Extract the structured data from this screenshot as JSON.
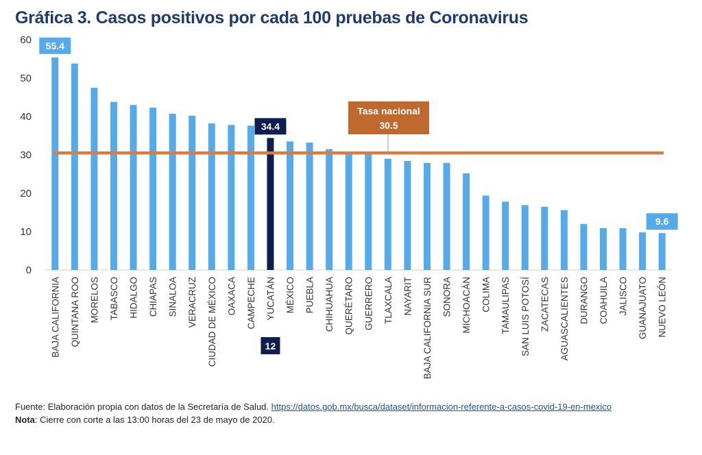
{
  "title": "Gráfica 3. Casos positivos por cada 100 pruebas de Coronavirus",
  "colors": {
    "bar": "#55aaea",
    "highlight": "#0e1f4f",
    "reference": "#de7a3c",
    "reference_box": "#c0692f",
    "label_box": "#55aaea"
  },
  "chart_data": {
    "type": "bar",
    "ylim": [
      0,
      60
    ],
    "yticks": [
      0,
      10,
      20,
      30,
      40,
      50,
      60
    ],
    "grid": false,
    "categories": [
      "BAJA CALIFORNIA",
      "QUINTANA ROO",
      "MORELOS",
      "TABASCO",
      "HIDALGO",
      "CHIAPAS",
      "SINALOA",
      "VERACRUZ",
      "CIUDAD DE MÉXICO",
      "OAXACA",
      "CAMPECHE",
      "YUCATÁN",
      "MÉXICO",
      "PUEBLA",
      "CHIHUAHUA",
      "QUERÉTARO",
      "GUERRERO",
      "TLAXCALA",
      "NAYARIT",
      "BAJA CALIFORNIA SUR",
      "SONORA",
      "MICHOACÁN",
      "COLIMA",
      "TAMAULIPAS",
      "SAN LUIS POTOSÍ",
      "ZACATECAS",
      "AGUASCALIENTES",
      "DURANGO",
      "COAHUILA",
      "JALISCO",
      "GUANAJUATO",
      "NUEVO LEÓN"
    ],
    "values": [
      55.4,
      53.8,
      47.5,
      43.8,
      43.0,
      42.3,
      40.7,
      40.2,
      38.2,
      37.8,
      37.6,
      34.4,
      33.5,
      33.2,
      31.5,
      30.5,
      30.2,
      29.0,
      28.4,
      27.9,
      27.9,
      25.2,
      19.4,
      17.8,
      16.9,
      16.5,
      15.6,
      12.0,
      10.9,
      10.9,
      9.8,
      9.6
    ],
    "highlight_index": 11,
    "data_labels": [
      {
        "index": 0,
        "text": "55.4"
      },
      {
        "index": 11,
        "text": "34.4"
      },
      {
        "index": 31,
        "text": "9.6"
      }
    ],
    "rank_label": {
      "index": 11,
      "text": "12"
    },
    "reference_line": {
      "value": 30.5,
      "label_line1": "Tasa nacional",
      "label_line2": "30.5"
    }
  },
  "footer": {
    "source_prefix": "Fuente: Elaboración propia con datos de la Secretaría de Salud. ",
    "source_link": "https://datos.gob.mx/busca/dataset/informacion-referente-a-casos-covid-19-en-mexico",
    "note_label": "Nota",
    "note_text": ": Cierre con corte a las 13:00 horas del 23 de mayo de 2020."
  }
}
